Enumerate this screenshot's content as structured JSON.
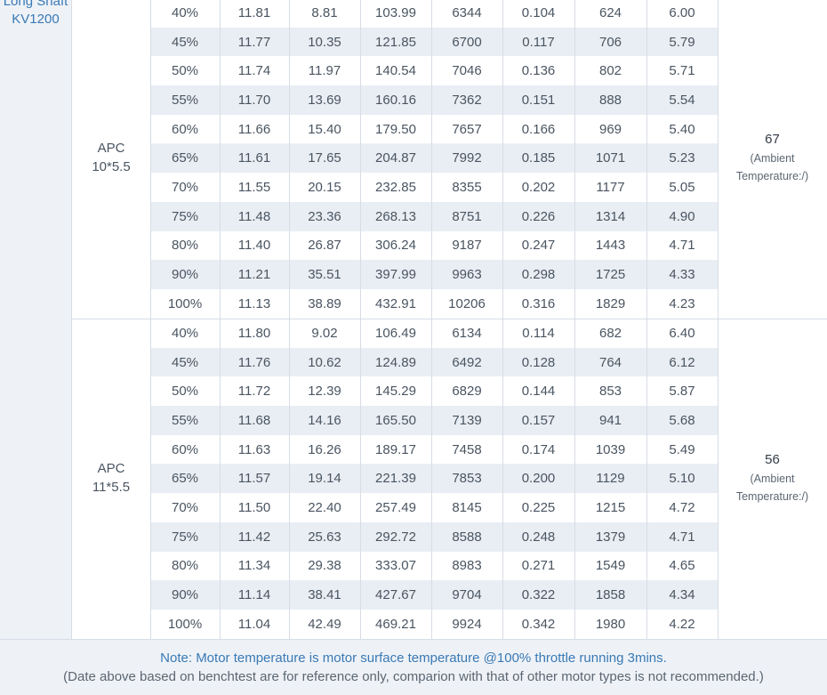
{
  "motor": {
    "line1": "Long Shaft",
    "line2": "KV1200"
  },
  "groups": [
    {
      "prop_line1": "APC",
      "prop_line2": "10*5.5",
      "temperature_value": "67",
      "temperature_note_line1": "(Ambient",
      "temperature_note_line2": "Temperature:/)",
      "rows": [
        [
          "40%",
          "11.81",
          "8.81",
          "103.99",
          "6344",
          "0.104",
          "624",
          "6.00"
        ],
        [
          "45%",
          "11.77",
          "10.35",
          "121.85",
          "6700",
          "0.117",
          "706",
          "5.79"
        ],
        [
          "50%",
          "11.74",
          "11.97",
          "140.54",
          "7046",
          "0.136",
          "802",
          "5.71"
        ],
        [
          "55%",
          "11.70",
          "13.69",
          "160.16",
          "7362",
          "0.151",
          "888",
          "5.54"
        ],
        [
          "60%",
          "11.66",
          "15.40",
          "179.50",
          "7657",
          "0.166",
          "969",
          "5.40"
        ],
        [
          "65%",
          "11.61",
          "17.65",
          "204.87",
          "7992",
          "0.185",
          "1071",
          "5.23"
        ],
        [
          "70%",
          "11.55",
          "20.15",
          "232.85",
          "8355",
          "0.202",
          "1177",
          "5.05"
        ],
        [
          "75%",
          "11.48",
          "23.36",
          "268.13",
          "8751",
          "0.226",
          "1314",
          "4.90"
        ],
        [
          "80%",
          "11.40",
          "26.87",
          "306.24",
          "9187",
          "0.247",
          "1443",
          "4.71"
        ],
        [
          "90%",
          "11.21",
          "35.51",
          "397.99",
          "9963",
          "0.298",
          "1725",
          "4.33"
        ],
        [
          "100%",
          "11.13",
          "38.89",
          "432.91",
          "10206",
          "0.316",
          "1829",
          "4.23"
        ]
      ]
    },
    {
      "prop_line1": "APC",
      "prop_line2": "11*5.5",
      "temperature_value": "56",
      "temperature_note_line1": "(Ambient",
      "temperature_note_line2": "Temperature:/)",
      "rows": [
        [
          "40%",
          "11.80",
          "9.02",
          "106.49",
          "6134",
          "0.114",
          "682",
          "6.40"
        ],
        [
          "45%",
          "11.76",
          "10.62",
          "124.89",
          "6492",
          "0.128",
          "764",
          "6.12"
        ],
        [
          "50%",
          "11.72",
          "12.39",
          "145.29",
          "6829",
          "0.144",
          "853",
          "5.87"
        ],
        [
          "55%",
          "11.68",
          "14.16",
          "165.50",
          "7139",
          "0.157",
          "941",
          "5.68"
        ],
        [
          "60%",
          "11.63",
          "16.26",
          "189.17",
          "7458",
          "0.174",
          "1039",
          "5.49"
        ],
        [
          "65%",
          "11.57",
          "19.14",
          "221.39",
          "7853",
          "0.200",
          "1129",
          "5.10"
        ],
        [
          "70%",
          "11.50",
          "22.40",
          "257.49",
          "8145",
          "0.225",
          "1215",
          "4.72"
        ],
        [
          "75%",
          "11.42",
          "25.63",
          "292.72",
          "8588",
          "0.248",
          "1379",
          "4.71"
        ],
        [
          "80%",
          "11.34",
          "29.38",
          "333.07",
          "8983",
          "0.271",
          "1549",
          "4.65"
        ],
        [
          "90%",
          "11.14",
          "38.41",
          "427.67",
          "9704",
          "0.322",
          "1858",
          "4.34"
        ],
        [
          "100%",
          "11.04",
          "42.49",
          "469.21",
          "9924",
          "0.342",
          "1980",
          "4.22"
        ]
      ]
    }
  ],
  "footer": {
    "note": "Note: Motor temperature is motor surface temperature @100% throttle running 3mins.",
    "disclaimer": "(Date above based on benchtest are for reference only, comparion with that of other motor types is not recommended.)"
  }
}
